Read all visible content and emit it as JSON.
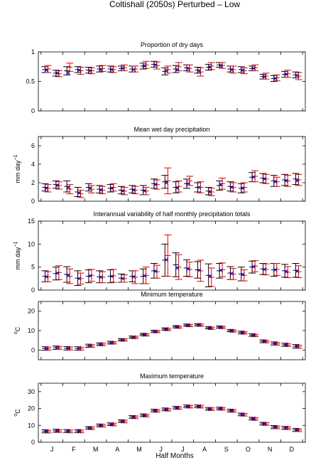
{
  "figure": {
    "title": "Coltishall (2050s) Perturbed – Low",
    "xlabel": "Half Months",
    "month_labels": [
      "J",
      "F",
      "M",
      "A",
      "M",
      "J",
      "J",
      "A",
      "S",
      "O",
      "N",
      "D"
    ]
  },
  "colors": {
    "series_a": "#000000",
    "series_b": "#e00000",
    "marker": "#0000cc",
    "axis": "#000000"
  },
  "chart_data": [
    {
      "type": "errorbar",
      "title": "Proportion of dry days",
      "ylabel": "",
      "ylim": [
        0,
        1
      ],
      "yticks": [
        0,
        0.5,
        1
      ],
      "ytick_labels": [
        "0",
        "0.5",
        "1"
      ],
      "x": [
        1,
        2,
        3,
        4,
        5,
        6,
        7,
        8,
        9,
        10,
        11,
        12,
        13,
        14,
        15,
        16,
        17,
        18,
        19,
        20,
        21,
        22,
        23,
        24
      ],
      "series": [
        {
          "values": [
            0.7,
            0.64,
            0.68,
            0.7,
            0.69,
            0.71,
            0.71,
            0.72,
            0.71,
            0.76,
            0.79,
            0.67,
            0.71,
            0.73,
            0.69,
            0.74,
            0.78,
            0.71,
            0.7,
            0.72,
            0.58,
            0.55,
            0.62,
            0.61
          ],
          "err": [
            0.05,
            0.05,
            0.07,
            0.05,
            0.05,
            0.05,
            0.05,
            0.04,
            0.05,
            0.05,
            0.05,
            0.06,
            0.06,
            0.05,
            0.05,
            0.05,
            0.04,
            0.05,
            0.05,
            0.04,
            0.04,
            0.05,
            0.05,
            0.05
          ]
        },
        {
          "values": [
            0.71,
            0.63,
            0.74,
            0.68,
            0.68,
            0.72,
            0.7,
            0.73,
            0.71,
            0.78,
            0.77,
            0.7,
            0.75,
            0.72,
            0.66,
            0.76,
            0.77,
            0.7,
            0.68,
            0.73,
            0.59,
            0.56,
            0.63,
            0.59
          ],
          "err": [
            0.06,
            0.05,
            0.07,
            0.06,
            0.05,
            0.05,
            0.05,
            0.05,
            0.05,
            0.06,
            0.06,
            0.06,
            0.07,
            0.06,
            0.07,
            0.06,
            0.05,
            0.06,
            0.05,
            0.05,
            0.05,
            0.05,
            0.06,
            0.06
          ]
        }
      ],
      "markers": [
        0.69,
        0.64,
        0.64,
        0.69,
        0.68,
        0.7,
        0.7,
        0.72,
        0.7,
        0.76,
        0.78,
        0.68,
        0.7,
        0.72,
        0.68,
        0.74,
        0.77,
        0.7,
        0.69,
        0.72,
        0.58,
        0.55,
        0.62,
        0.6
      ]
    },
    {
      "type": "errorbar",
      "title": "Mean wet day precipitation",
      "ylabel": "mm day",
      "ylabel_sup": "−1",
      "ylim": [
        0,
        7
      ],
      "yticks": [
        0,
        2,
        4,
        6
      ],
      "ytick_labels": [
        "0",
        "2",
        "4",
        "6"
      ],
      "x": [
        1,
        2,
        3,
        4,
        5,
        6,
        7,
        8,
        9,
        10,
        11,
        12,
        13,
        14,
        15,
        16,
        17,
        18,
        19,
        20,
        21,
        22,
        23,
        24
      ],
      "series": [
        {
          "values": [
            1.5,
            1.8,
            1.6,
            1.0,
            1.5,
            1.3,
            1.4,
            1.2,
            1.3,
            1.2,
            1.9,
            2.1,
            1.5,
            1.9,
            1.5,
            1.1,
            1.7,
            1.6,
            1.4,
            2.6,
            2.5,
            2.2,
            2.3,
            2.4
          ],
          "err": [
            0.4,
            0.4,
            0.6,
            0.5,
            0.4,
            0.4,
            0.4,
            0.4,
            0.4,
            0.5,
            0.5,
            0.7,
            0.6,
            0.5,
            0.5,
            0.4,
            0.5,
            0.5,
            0.5,
            0.5,
            0.5,
            0.6,
            0.6,
            0.6
          ]
        },
        {
          "values": [
            1.4,
            1.7,
            1.3,
            0.8,
            1.3,
            1.2,
            1.5,
            1.1,
            1.2,
            1.1,
            1.8,
            2.2,
            1.6,
            2.2,
            1.5,
            1.0,
            1.9,
            1.5,
            1.5,
            2.7,
            2.4,
            2.1,
            2.2,
            2.3
          ],
          "err": [
            0.4,
            0.4,
            0.5,
            0.4,
            0.4,
            0.4,
            0.4,
            0.4,
            0.4,
            0.4,
            0.5,
            1.4,
            0.6,
            0.5,
            0.6,
            0.4,
            0.6,
            0.5,
            0.5,
            0.6,
            0.5,
            0.5,
            0.6,
            0.6
          ]
        }
      ],
      "markers": [
        1.4,
        1.7,
        1.5,
        0.9,
        1.4,
        1.2,
        1.4,
        1.1,
        1.2,
        1.1,
        1.8,
        2.0,
        1.4,
        1.9,
        1.5,
        1.0,
        1.8,
        1.5,
        1.4,
        2.6,
        2.4,
        2.1,
        2.2,
        2.2
      ]
    },
    {
      "type": "errorbar",
      "title": "Interannual variability of half monthly precipitation totals",
      "ylabel": "mm day",
      "ylabel_sup": "−1",
      "ylim": [
        0,
        15
      ],
      "yticks": [
        0,
        5,
        10,
        15
      ],
      "ytick_labels": [
        "0",
        "5",
        "10",
        "15"
      ],
      "x": [
        1,
        2,
        3,
        4,
        5,
        6,
        7,
        8,
        9,
        10,
        11,
        12,
        13,
        14,
        15,
        16,
        17,
        18,
        19,
        20,
        21,
        22,
        23,
        24
      ],
      "series": [
        {
          "values": [
            3.0,
            3.6,
            3.4,
            2.6,
            3.0,
            2.9,
            3.0,
            2.6,
            3.0,
            3.0,
            4.2,
            6.5,
            5.5,
            4.8,
            4.4,
            3.2,
            4.2,
            3.7,
            3.5,
            5.0,
            4.6,
            4.4,
            4.2,
            4.3
          ],
          "err": [
            1.2,
            1.4,
            1.7,
            1.6,
            1.4,
            1.3,
            1.4,
            0.9,
            1.2,
            1.6,
            1.6,
            3.5,
            2.6,
            1.8,
            1.8,
            2.5,
            1.6,
            1.4,
            1.5,
            1.3,
            1.2,
            1.4,
            1.4,
            1.5
          ]
        },
        {
          "values": [
            2.9,
            3.8,
            3.0,
            2.5,
            3.2,
            2.8,
            3.1,
            2.5,
            2.8,
            3.2,
            4.0,
            7.5,
            5.0,
            4.5,
            4.2,
            2.8,
            4.4,
            3.5,
            3.2,
            5.2,
            4.5,
            4.5,
            3.9,
            4.0
          ],
          "err": [
            1.1,
            1.5,
            1.6,
            1.2,
            1.3,
            1.2,
            1.4,
            0.8,
            1.4,
            1.8,
            1.4,
            4.5,
            2.7,
            1.6,
            2.3,
            2.0,
            1.5,
            1.2,
            1.2,
            1.2,
            1.2,
            1.3,
            1.2,
            1.3
          ]
        }
      ],
      "markers": [
        2.9,
        3.7,
        3.2,
        2.5,
        3.1,
        2.8,
        3.0,
        2.5,
        2.9,
        3.1,
        4.1,
        6.6,
        4.8,
        4.6,
        4.3,
        3.0,
        4.3,
        3.6,
        3.4,
        5.1,
        4.5,
        4.4,
        4.0,
        4.1
      ]
    },
    {
      "type": "errorbar",
      "title": "Minimum temperature",
      "ylabel": "C",
      "ylabel_sup": "o",
      "ylim": [
        -5,
        25
      ],
      "yticks": [
        0,
        10,
        20
      ],
      "ytick_labels": [
        "0",
        "10",
        "20"
      ],
      "x": [
        1,
        2,
        3,
        4,
        5,
        6,
        7,
        8,
        9,
        10,
        11,
        12,
        13,
        14,
        15,
        16,
        17,
        18,
        19,
        20,
        21,
        22,
        23,
        24
      ],
      "series": [
        {
          "values": [
            0.8,
            1.2,
            0.9,
            0.8,
            2.2,
            3.0,
            3.8,
            5.3,
            6.6,
            8.0,
            9.6,
            10.8,
            12.0,
            12.8,
            13.0,
            11.5,
            11.8,
            10.0,
            9.0,
            7.7,
            4.5,
            3.4,
            2.7,
            1.9
          ],
          "err": [
            0.9,
            0.9,
            0.9,
            0.9,
            0.8,
            0.7,
            0.7,
            0.6,
            0.6,
            0.6,
            0.6,
            0.6,
            0.6,
            0.6,
            0.6,
            0.6,
            0.6,
            0.6,
            0.7,
            0.7,
            0.7,
            0.8,
            0.8,
            0.9
          ]
        },
        {
          "values": [
            0.7,
            1.1,
            0.8,
            0.7,
            2.1,
            2.9,
            3.7,
            5.2,
            6.5,
            7.8,
            9.5,
            10.6,
            11.8,
            12.6,
            12.8,
            11.2,
            11.6,
            9.8,
            8.8,
            7.5,
            4.3,
            3.2,
            2.5,
            1.7
          ],
          "err": [
            0.8,
            0.8,
            0.8,
            0.8,
            0.7,
            0.7,
            0.6,
            0.6,
            0.6,
            0.6,
            0.6,
            0.6,
            0.6,
            0.6,
            0.6,
            0.6,
            0.6,
            0.6,
            0.6,
            0.6,
            0.6,
            0.7,
            0.7,
            0.8
          ]
        }
      ],
      "markers": [
        0.7,
        1.1,
        0.8,
        0.7,
        2.1,
        2.9,
        3.7,
        5.2,
        6.5,
        7.9,
        9.5,
        10.7,
        11.9,
        12.7,
        12.9,
        11.3,
        11.7,
        9.9,
        8.9,
        7.6,
        4.4,
        3.3,
        2.6,
        1.8
      ]
    },
    {
      "type": "errorbar",
      "title": "Maximum temperature",
      "ylabel": "C",
      "ylabel_sup": "o",
      "ylim": [
        0,
        35
      ],
      "yticks": [
        0,
        10,
        20,
        30
      ],
      "ytick_labels": [
        "0",
        "10",
        "20",
        "30"
      ],
      "x": [
        1,
        2,
        3,
        4,
        5,
        6,
        7,
        8,
        9,
        10,
        11,
        12,
        13,
        14,
        15,
        16,
        17,
        18,
        19,
        20,
        21,
        22,
        23,
        24
      ],
      "series": [
        {
          "values": [
            6.5,
            6.8,
            6.6,
            6.6,
            8.5,
            10.0,
            10.7,
            12.5,
            15.0,
            16.0,
            18.8,
            19.5,
            20.5,
            21.3,
            21.3,
            19.8,
            20.0,
            18.8,
            16.5,
            14.0,
            11.0,
            9.0,
            8.5,
            7.3
          ],
          "err": [
            0.9,
            0.9,
            0.9,
            0.9,
            0.8,
            0.8,
            0.8,
            0.8,
            0.8,
            0.8,
            0.8,
            0.8,
            0.8,
            0.8,
            0.8,
            0.8,
            0.8,
            0.8,
            0.8,
            0.8,
            0.8,
            0.9,
            0.9,
            0.9
          ]
        },
        {
          "values": [
            6.3,
            6.6,
            6.4,
            6.4,
            8.3,
            9.8,
            10.5,
            12.3,
            14.8,
            15.8,
            18.6,
            19.3,
            20.3,
            21.1,
            21.1,
            19.6,
            19.8,
            18.6,
            16.3,
            13.8,
            10.8,
            8.8,
            8.3,
            7.1
          ],
          "err": [
            0.8,
            0.8,
            0.8,
            0.8,
            0.8,
            0.8,
            0.8,
            0.8,
            0.8,
            0.8,
            0.8,
            0.8,
            0.8,
            0.8,
            0.8,
            0.8,
            0.8,
            0.8,
            0.8,
            0.8,
            0.8,
            0.8,
            0.8,
            0.8
          ]
        }
      ],
      "markers": [
        6.4,
        6.7,
        6.5,
        6.5,
        8.4,
        9.9,
        10.6,
        12.4,
        14.9,
        15.9,
        18.7,
        19.4,
        20.4,
        21.2,
        21.2,
        19.7,
        19.9,
        18.7,
        16.4,
        13.9,
        10.9,
        8.9,
        8.4,
        7.2
      ]
    }
  ]
}
